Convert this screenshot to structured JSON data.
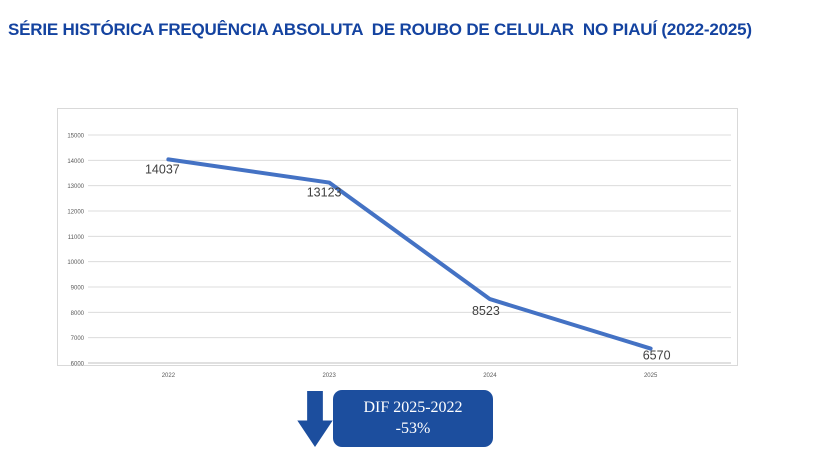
{
  "title": "SÉRIE HISTÓRICA FREQUÊNCIA ABSOLUTA  DE ROUBO DE CELULAR  NO PIAUÍ (2022-2025)",
  "colors": {
    "title": "#1443a0",
    "line": "#4472c4",
    "annotation": "#1c4e9e",
    "annotation_text": "#ffffff",
    "gridline": "#dcdcdc",
    "axis_line": "#c0c0c0",
    "panel_border": "#d9d9d9",
    "axis_text": "#595959",
    "data_label_text": "#404040"
  },
  "chart_data": {
    "type": "line",
    "title": "",
    "xlabel": "",
    "ylabel": "",
    "categories": [
      "2022",
      "2023",
      "2024",
      "2025"
    ],
    "series": [
      {
        "name": "Frequência absoluta de roubo de celular",
        "values": [
          14037,
          13123,
          8523,
          6570
        ]
      }
    ],
    "data_labels": [
      "14037",
      "13123",
      "8523",
      "6570"
    ],
    "ylim": [
      6000,
      15000
    ],
    "ytick_step": 1000,
    "grid": true,
    "legend": "none"
  },
  "annotation": {
    "line1": "DIF 2025-2022",
    "line2": "-53%"
  }
}
